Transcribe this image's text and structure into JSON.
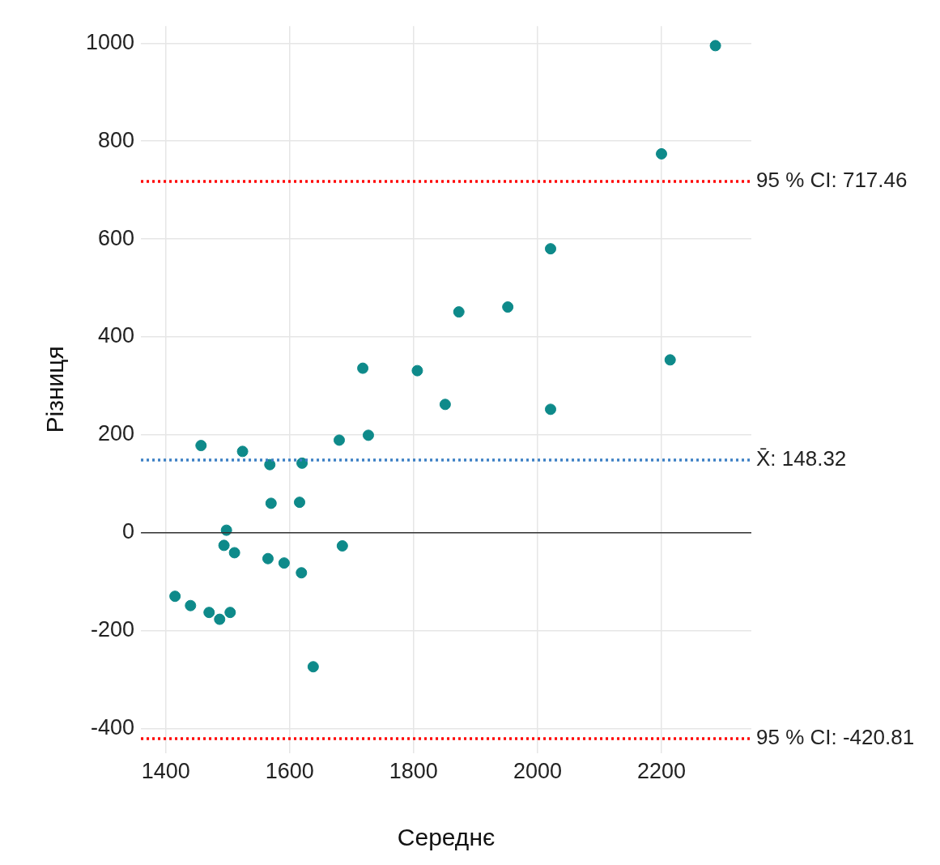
{
  "chart_data": {
    "type": "scatter",
    "xlabel": "Середнє",
    "ylabel": "Різниця",
    "x": [
      2287,
      2200,
      2021,
      1952,
      1873,
      2214,
      1718,
      1806,
      1851,
      2021,
      1727,
      1680,
      1457,
      1524,
      1568,
      1620,
      1570,
      1616,
      1498,
      1494,
      1511,
      1685,
      1565,
      1591,
      1619,
      1415,
      1440,
      1470,
      1504,
      1487,
      1638
    ],
    "series": [
      {
        "color": "#0e8a8a",
        "values": [
          995,
          774,
          580,
          461,
          451,
          353,
          336,
          331,
          262,
          252,
          199,
          189,
          178,
          166,
          139,
          142,
          60,
          62,
          5,
          -26,
          -41,
          -27,
          -53,
          -62,
          -82,
          -130,
          -149,
          -163,
          -163,
          -177,
          -274
        ]
      }
    ],
    "xlim": [
      1360,
      2345
    ],
    "ylim": [
      -450,
      1035
    ],
    "xticks": [
      1400,
      1600,
      1800,
      2000,
      2200
    ],
    "yticks": [
      -400,
      -200,
      0,
      200,
      400,
      600,
      800,
      1000
    ],
    "grid": true,
    "legend": false,
    "marker": "circle",
    "ref_lines": [
      {
        "axis": "y",
        "value": 717.46,
        "label": "95 % CI: 717.46",
        "color": "#ff0000",
        "line_style": "dotted"
      },
      {
        "axis": "y",
        "value": 148.32,
        "label": "X̄: 148.32",
        "color": "#3b7fc4",
        "line_style": "dotted"
      },
      {
        "axis": "y",
        "value": -420.81,
        "label": "95 % CI: -420.81",
        "color": "#ff0000",
        "line_style": "dotted"
      },
      {
        "axis": "y",
        "value": 0,
        "label": null,
        "color": "#333333",
        "line_style": "solid"
      }
    ]
  }
}
